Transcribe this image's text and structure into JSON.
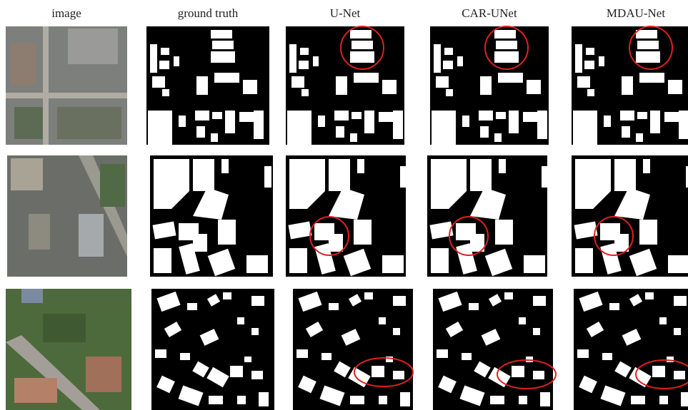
{
  "header": {
    "columns": [
      "image",
      "ground truth",
      "U-Net",
      "CAR-UNet",
      "MDAU-Net"
    ]
  }
}
